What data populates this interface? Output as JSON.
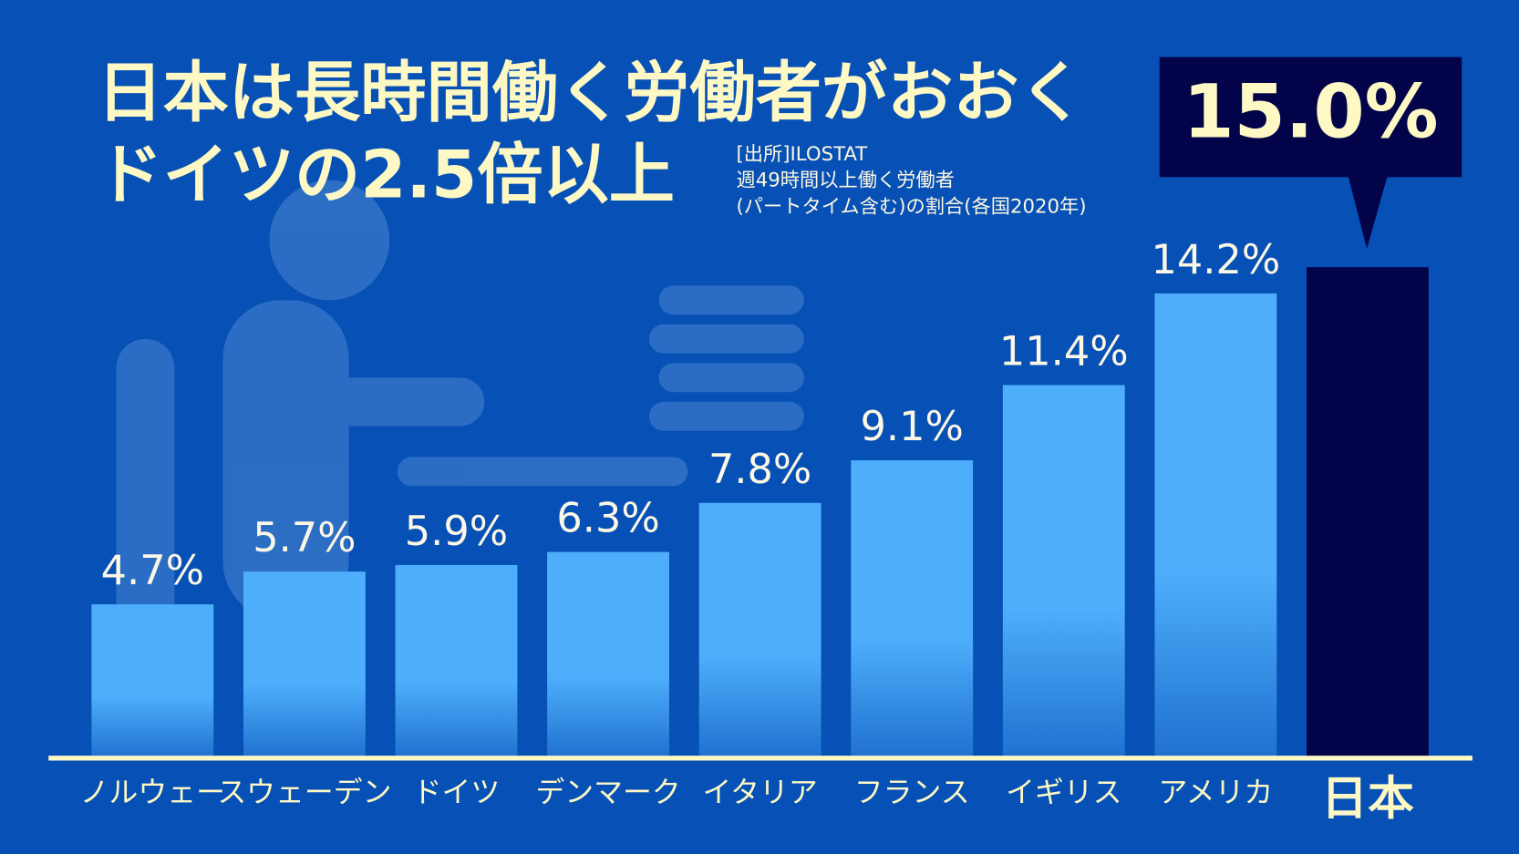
{
  "chart_data": {
    "type": "bar",
    "title": [
      "日本は長時間働く労働者がおおく",
      "ドイツの2.5倍以上"
    ],
    "source": [
      "[出所]ILOSTAT",
      "週49時間以上働く労働者",
      "(パートタイム含む)の割合(各国2020年)"
    ],
    "categories": [
      "ノルウェー",
      "スウェーデン",
      "ドイツ",
      "デンマーク",
      "イタリア",
      "フランス",
      "イギリス",
      "アメリカ",
      "日本"
    ],
    "values": [
      4.7,
      5.7,
      5.9,
      6.3,
      7.8,
      9.1,
      11.4,
      14.2,
      15.0
    ],
    "value_labels": [
      "4.7%",
      "5.7%",
      "5.9%",
      "6.3%",
      "7.8%",
      "9.1%",
      "11.4%",
      "14.2%",
      "15.0%"
    ],
    "colors": [
      "#4eaefc",
      "#4eaefc",
      "#4eaefc",
      "#4eaefc",
      "#4eaefc",
      "#4eaefc",
      "#4eaefc",
      "#4eaefc",
      "#03034a"
    ],
    "ylim": [
      0,
      15
    ]
  }
}
